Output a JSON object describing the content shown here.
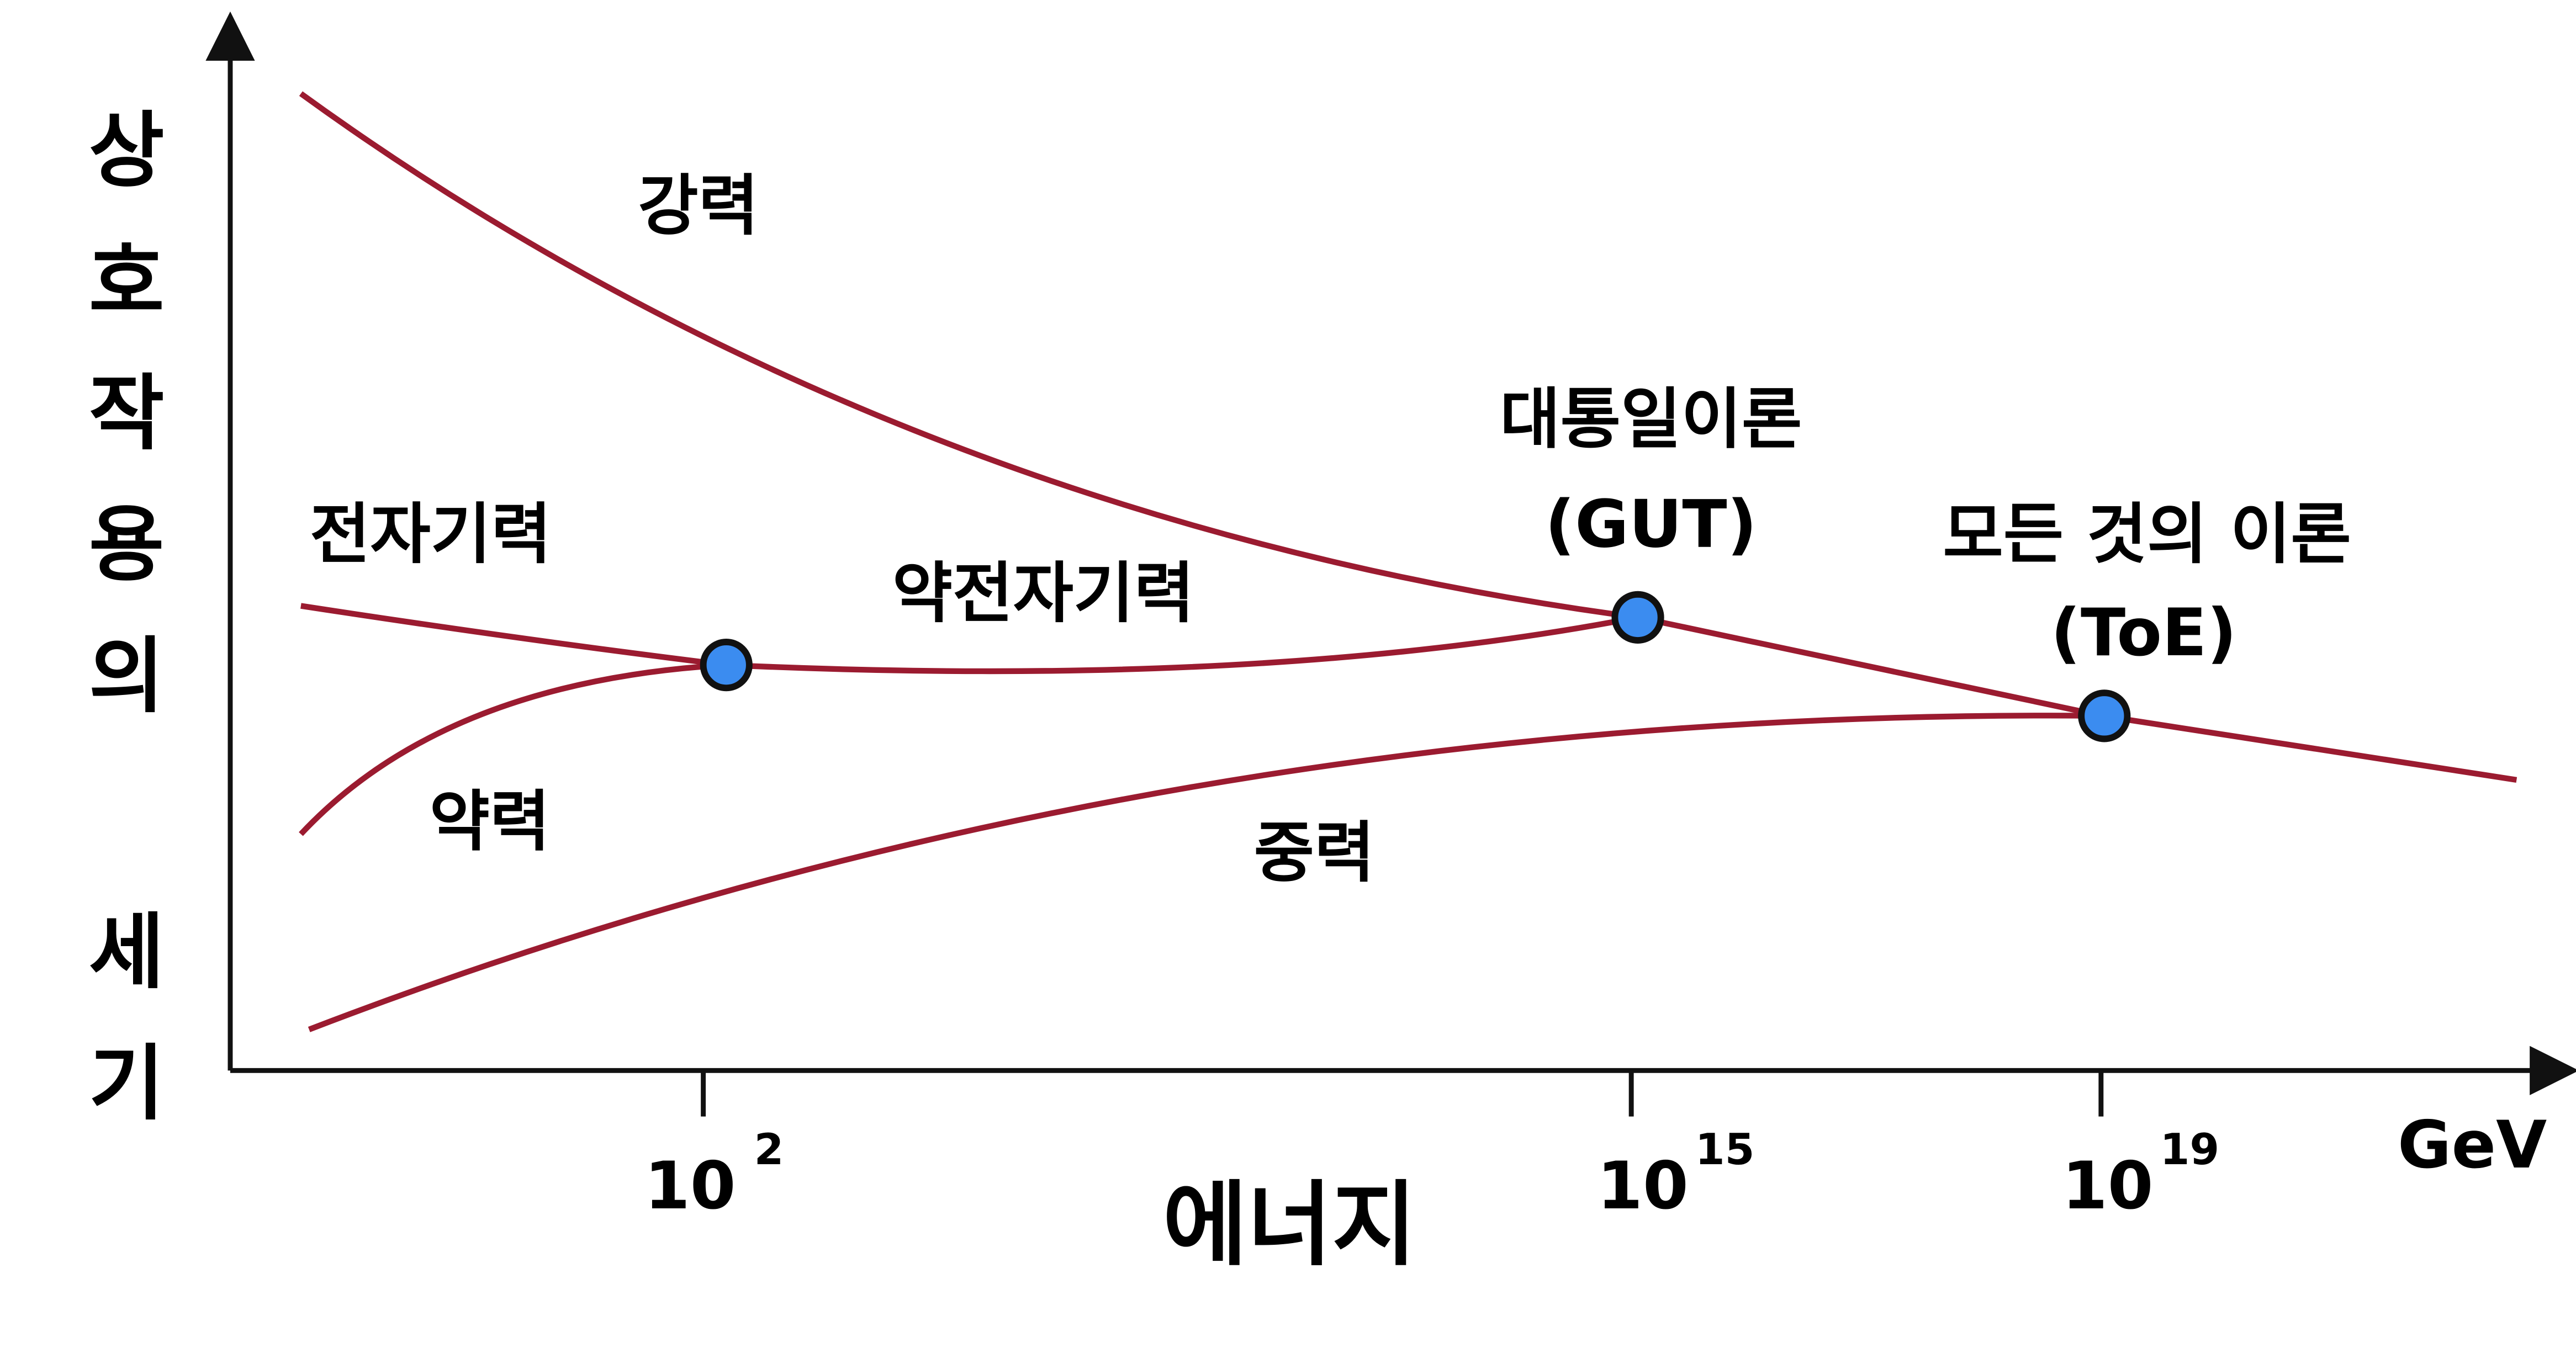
{
  "axes": {
    "y_label": "상호작용의 세기",
    "x_label": "에너지",
    "x_unit": "GeV",
    "ticks": [
      {
        "base": "10",
        "exp": "2"
      },
      {
        "base": "10",
        "exp": "15"
      },
      {
        "base": "10",
        "exp": "19"
      }
    ]
  },
  "labels": {
    "strong": "강력",
    "electromagnetic": "전자기력",
    "weak": "약력",
    "electroweak": "약전자기력",
    "gravity": "중력"
  },
  "points": {
    "gut": {
      "name": "대통일이론",
      "abbr": "(GUT)"
    },
    "toe": {
      "name": "모든 것의 이론",
      "abbr": "(ToE)"
    }
  }
}
